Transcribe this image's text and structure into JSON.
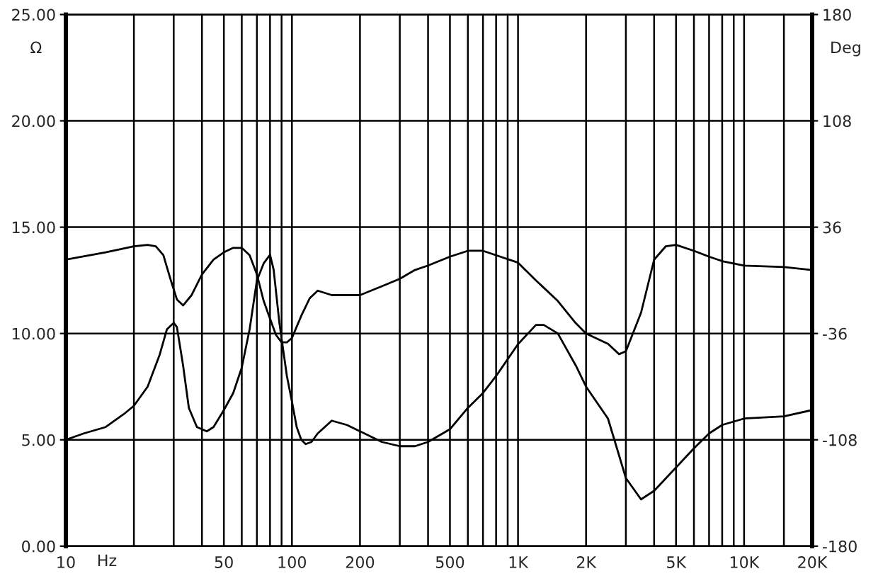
{
  "chart_data": {
    "type": "line",
    "xlabel": "Hz",
    "ylabel": "Ω",
    "y2label": "Deg",
    "log": "x",
    "grid": true,
    "legend": false,
    "marker": "none",
    "line_style": "solid",
    "xlim": [
      10,
      20000
    ],
    "xticks": [
      10,
      {
        "value": 20,
        "label": null
      },
      {
        "value": 30,
        "label": null
      },
      {
        "value": 40,
        "label": null
      },
      50,
      {
        "value": 60,
        "label": null
      },
      {
        "value": 70,
        "label": null
      },
      {
        "value": 80,
        "label": null
      },
      {
        "value": 90,
        "label": null
      },
      100,
      200,
      {
        "value": 300,
        "label": null
      },
      {
        "value": 400,
        "label": null
      },
      500,
      {
        "value": 600,
        "label": null
      },
      {
        "value": 700,
        "label": null
      },
      {
        "value": 800,
        "label": null
      },
      {
        "value": 900,
        "label": null
      },
      {
        "value": 1000,
        "label": "1K"
      },
      {
        "value": 2000,
        "label": "2K"
      },
      {
        "value": 3000,
        "label": null
      },
      {
        "value": 4000,
        "label": null
      },
      {
        "value": 5000,
        "label": "5K"
      },
      {
        "value": 6000,
        "label": null
      },
      {
        "value": 7000,
        "label": null
      },
      {
        "value": 8000,
        "label": null
      },
      {
        "value": 9000,
        "label": null
      },
      {
        "value": 10000,
        "label": "10K"
      },
      {
        "value": 15000,
        "label": null
      },
      {
        "value": 20000,
        "label": "20K"
      }
    ],
    "ylim": [
      0,
      25
    ],
    "yticks": [
      {
        "value": 0,
        "label": "0.00"
      },
      {
        "value": 5,
        "label": "5.00"
      },
      {
        "value": 10,
        "label": "10.00"
      },
      {
        "value": 15,
        "label": "15.00"
      },
      {
        "value": 20,
        "label": "20.00"
      },
      {
        "value": 25,
        "label": "25.00"
      }
    ],
    "y2lim": [
      -180,
      180
    ],
    "y2ticks": [
      -180,
      -108,
      -36,
      36,
      108,
      180
    ],
    "series": [
      {
        "color": "#000000",
        "x": [
          10,
          12,
          15,
          18,
          20,
          23,
          26,
          28,
          30,
          31,
          33,
          35,
          38,
          42,
          45,
          50,
          55,
          60,
          65,
          70,
          75,
          80,
          83,
          88,
          95,
          100,
          105,
          110,
          115,
          122,
          130,
          150,
          175,
          200,
          250,
          300,
          350,
          400,
          500,
          600,
          700,
          800,
          1000,
          1200,
          1300,
          1500,
          1800,
          2000,
          2500,
          3000,
          3500,
          4000,
          5000,
          6000,
          7000,
          8000,
          10000,
          15000,
          20000
        ],
        "values": [
          5.0,
          5.3,
          5.6,
          6.2,
          6.6,
          7.5,
          9.0,
          10.2,
          10.5,
          10.3,
          8.5,
          6.5,
          5.6,
          5.4,
          5.6,
          6.4,
          7.2,
          8.4,
          10.2,
          12.5,
          13.3,
          13.7,
          13.0,
          10.5,
          8.0,
          6.8,
          5.6,
          5.0,
          4.8,
          4.9,
          5.3,
          5.9,
          5.7,
          5.4,
          4.9,
          4.7,
          4.7,
          4.9,
          5.5,
          6.5,
          7.2,
          8.0,
          9.5,
          10.4,
          10.4,
          10.0,
          8.5,
          7.5,
          6.0,
          3.2,
          2.2,
          2.6,
          3.7,
          4.6,
          5.3,
          5.7,
          6.0,
          6.1,
          6.4
        ]
      },
      {
        "color": "#000000",
        "axis": "y2",
        "x": [
          10,
          15,
          20,
          23,
          25,
          27,
          29,
          31,
          33,
          36,
          40,
          45,
          50,
          55,
          60,
          65,
          70,
          75,
          80,
          85,
          90,
          95,
          100,
          110,
          120,
          130,
          150,
          200,
          250,
          300,
          350,
          400,
          500,
          600,
          700,
          800,
          1000,
          1200,
          1500,
          1800,
          2000,
          2500,
          2800,
          3000,
          3500,
          4000,
          4500,
          5000,
          6000,
          7000,
          8000,
          10000,
          15000,
          20000
        ],
        "values": [
          14,
          19,
          23,
          24,
          23,
          17,
          1,
          -13,
          -17,
          -10,
          4,
          14,
          19,
          22,
          22,
          17,
          4,
          -14,
          -26,
          -37,
          -42,
          -42,
          -39,
          -24,
          -12,
          -7,
          -10,
          -10,
          -4,
          1,
          7,
          10,
          16,
          20,
          20,
          17,
          12,
          0,
          -14,
          -29,
          -36,
          -43,
          -50,
          -48,
          -22,
          14,
          23,
          24,
          20,
          16,
          13,
          10,
          9,
          7
        ]
      }
    ]
  }
}
